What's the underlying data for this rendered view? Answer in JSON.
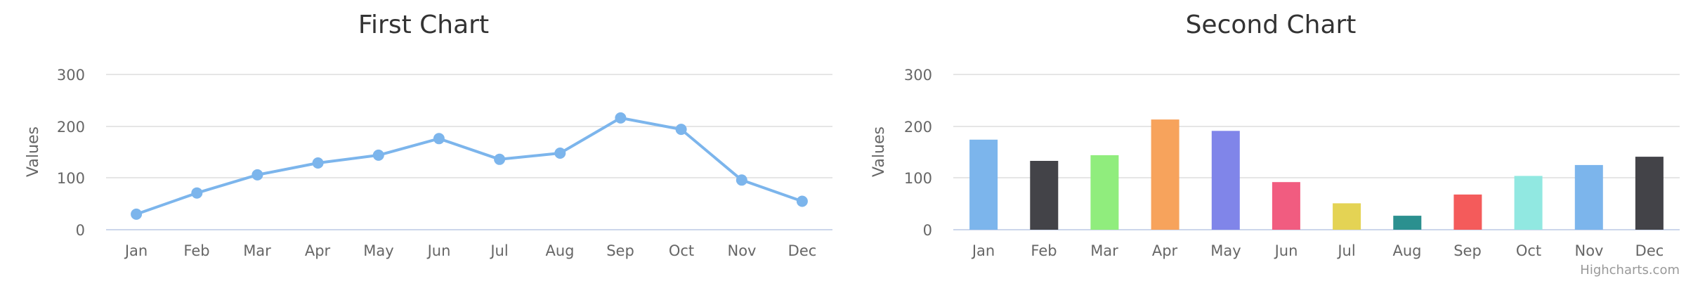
{
  "chart_data": [
    {
      "type": "line",
      "title": "First Chart",
      "xlabel": "",
      "ylabel": "Values",
      "ylim": [
        0,
        300
      ],
      "yticks": [
        "0",
        "100",
        "200",
        "300"
      ],
      "categories": [
        "Jan",
        "Feb",
        "Mar",
        "Apr",
        "May",
        "Jun",
        "Jul",
        "Aug",
        "Sep",
        "Oct",
        "Nov",
        "Dec"
      ],
      "series": [
        {
          "values": [
            30,
            71,
            106,
            129,
            144,
            176,
            136,
            148,
            216,
            194,
            96,
            55
          ],
          "color": "#7cb5ec"
        }
      ],
      "grid": true,
      "legend": false
    },
    {
      "type": "bar",
      "title": "Second Chart",
      "xlabel": "",
      "ylabel": "Values",
      "ylim": [
        0,
        300
      ],
      "yticks": [
        "0",
        "100",
        "200",
        "300"
      ],
      "categories": [
        "Jan",
        "Feb",
        "Mar",
        "Apr",
        "May",
        "Jun",
        "Jul",
        "Aug",
        "Sep",
        "Oct",
        "Nov",
        "Dec"
      ],
      "series": [
        {
          "values": [
            174,
            133,
            144,
            213,
            191,
            92,
            51,
            27,
            68,
            104,
            125,
            141
          ],
          "colors": [
            "#7cb5ec",
            "#434348",
            "#90ed7d",
            "#f7a35c",
            "#8085e9",
            "#f15c80",
            "#e4d354",
            "#2b908f",
            "#f45b5b",
            "#91e8e1",
            "#7cb5ec",
            "#434348"
          ]
        }
      ],
      "grid": true,
      "legend": false
    }
  ],
  "credits": "Highcharts.com",
  "colors": {
    "grid": "#e6e6e6",
    "axis_line": "#ccd6eb"
  }
}
